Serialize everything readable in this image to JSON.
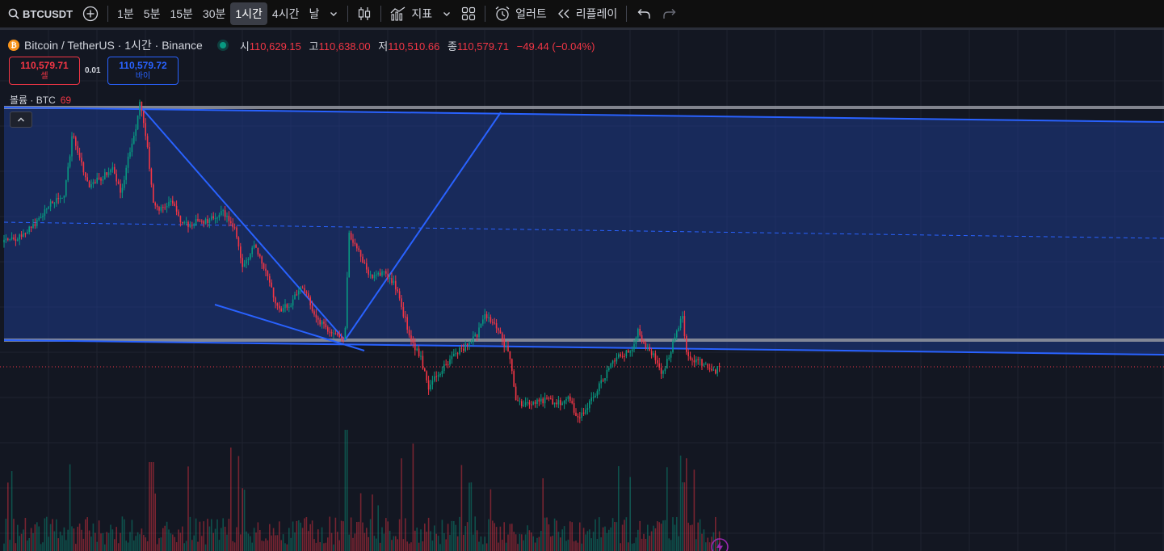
{
  "toolbar": {
    "symbol": "BTCUSDT",
    "intervals": [
      "1분",
      "5분",
      "15분",
      "30분",
      "1시간",
      "4시간",
      "날"
    ],
    "active_interval": "1시간",
    "indicators_label": "지표",
    "alert_label": "얼러트",
    "replay_label": "리플레이"
  },
  "legend": {
    "title": "Bitcoin / TetherUS · 1시간 · Binance",
    "open_label": "시",
    "open": "110,629.15",
    "high_label": "고",
    "high": "110,638.00",
    "low_label": "저",
    "low": "110,510.66",
    "close_label": "종",
    "close": "110,579.71",
    "change": "−49.44 (−0.04%)"
  },
  "trade": {
    "sell_price": "110,579.71",
    "sell_label": "셀",
    "spread": "0.01",
    "buy_price": "110,579.72",
    "buy_label": "바이"
  },
  "volume_legend": {
    "label": "볼륨 · BTC",
    "value": "69"
  },
  "colors": {
    "background": "#131722",
    "up": "#089981",
    "down": "#f23645",
    "drawing": "#2962ff",
    "channel_fill": "#1e3a8a"
  },
  "icons": [
    "search-icon",
    "plus-circle-icon",
    "chevron-down-icon",
    "candles-icon",
    "indicators-icon",
    "layout-grid-icon",
    "alarm-clock-icon",
    "rewind-icon",
    "undo-icon",
    "redo-icon",
    "chevron-up-icon",
    "lightning-icon"
  ]
}
